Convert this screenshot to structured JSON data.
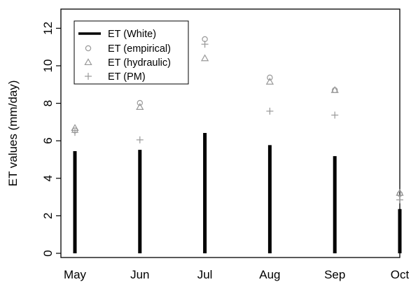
{
  "chart_data": {
    "type": "bar",
    "title": "",
    "xlabel": "",
    "ylabel": "ET values (mm/day)",
    "categories": [
      "May",
      "Jun",
      "Jul",
      "Aug",
      "Sep",
      "Oct"
    ],
    "ylim": [
      0,
      12.5
    ],
    "yticks": [
      "0",
      "2",
      "4",
      "6",
      "8",
      "10",
      "12"
    ],
    "grid": false,
    "legend_position": "top-left",
    "series": [
      {
        "name": "ET (White)",
        "kind": "bar",
        "color": "#000000",
        "values": [
          5.45,
          5.52,
          6.42,
          5.77,
          5.18,
          2.36
        ]
      },
      {
        "name": "ET (empirical)",
        "kind": "marker",
        "marker": "circle",
        "color": "#999999",
        "values": [
          6.55,
          8.02,
          11.42,
          9.37,
          8.7,
          3.17
        ]
      },
      {
        "name": "ET (hydraulic)",
        "kind": "marker",
        "marker": "triangle",
        "color": "#999999",
        "values": [
          6.68,
          7.8,
          10.4,
          9.15,
          8.7,
          3.22
        ]
      },
      {
        "name": "ET (PM)",
        "kind": "marker",
        "marker": "plus",
        "color": "#999999",
        "values": [
          6.45,
          6.05,
          11.15,
          7.58,
          7.37,
          2.85
        ]
      }
    ]
  }
}
